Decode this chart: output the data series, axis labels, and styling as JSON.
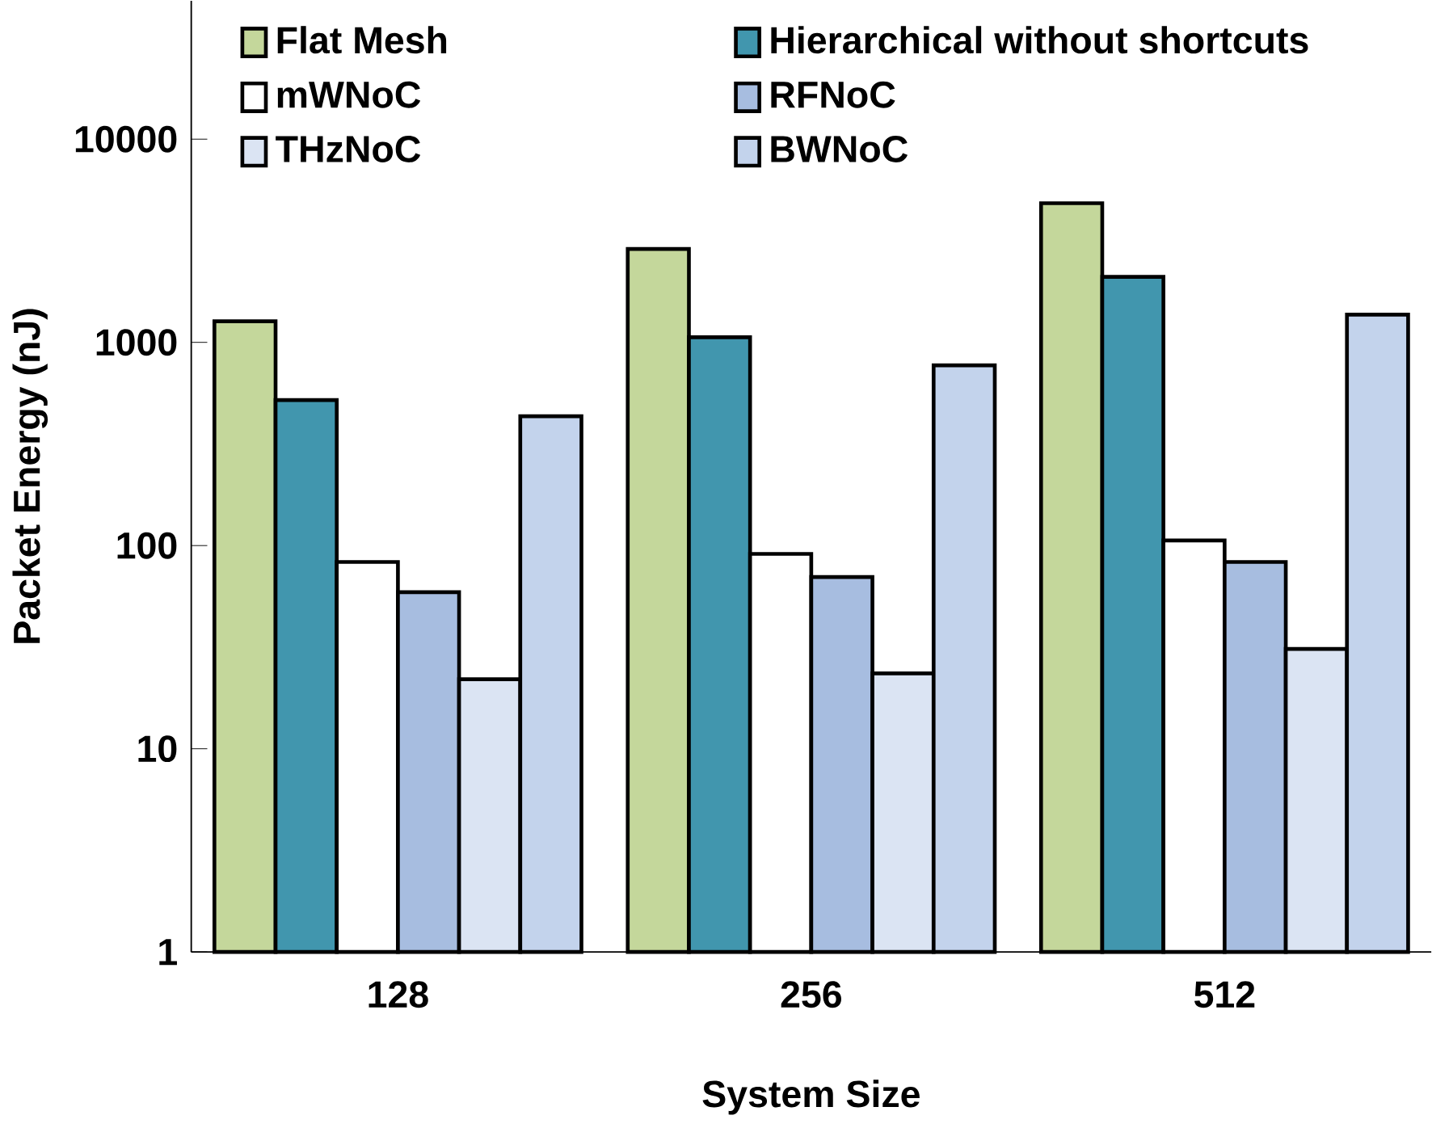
{
  "chart_data": {
    "type": "bar",
    "xlabel": "System Size",
    "ylabel": "Packet Energy (nJ)",
    "categories": [
      "128",
      "256",
      "512"
    ],
    "series": [
      {
        "name": "Flat Mesh",
        "color": "#c4d79b",
        "values": [
          1270,
          2880,
          4840
        ]
      },
      {
        "name": "Hierarchical without shortcuts",
        "color": "#4196ae",
        "values": [
          520,
          1060,
          2100
        ]
      },
      {
        "name": "mWNoC",
        "color": "#ffffff",
        "values": [
          83,
          91,
          106
        ]
      },
      {
        "name": "RFNoC",
        "color": "#a7bde0",
        "values": [
          59,
          70,
          83
        ]
      },
      {
        "name": "THzNoC",
        "color": "#dbe4f3",
        "values": [
          22,
          23.5,
          31
        ]
      },
      {
        "name": "BWNoC",
        "color": "#c3d3ec",
        "values": [
          433,
          771,
          1370
        ]
      }
    ],
    "log": "y",
    "ylim": [
      1,
      48000
    ],
    "yticks": [
      1,
      10,
      100,
      1000,
      10000
    ],
    "legend": "top",
    "grid": false
  }
}
